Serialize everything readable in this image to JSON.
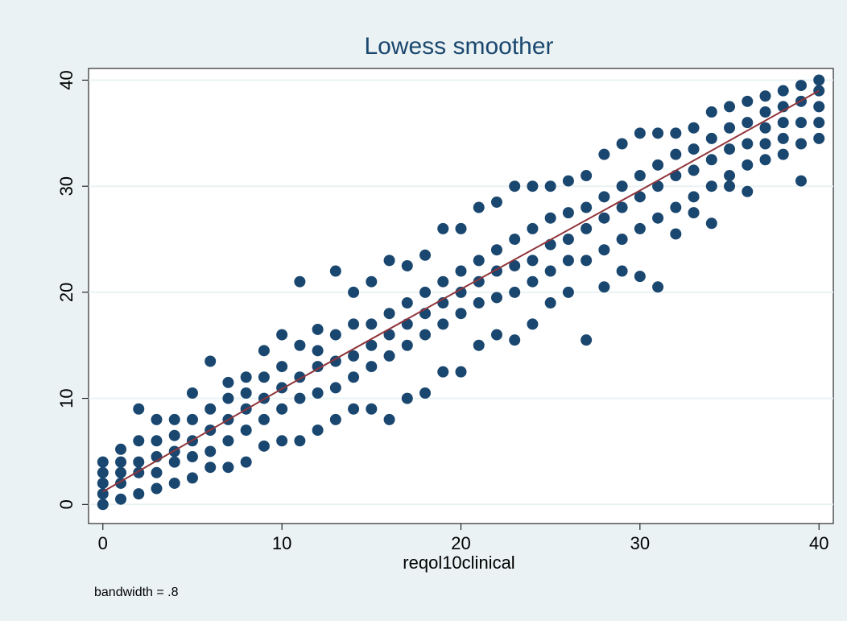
{
  "chart_data": {
    "type": "scatter",
    "title": "Lowess smoother",
    "x_label": "reqol10clinical",
    "note": "bandwidth = .8",
    "xlim": [
      -0.8,
      40.8
    ],
    "ylim": [
      -1.8,
      41.1
    ],
    "xticks": [
      0,
      10,
      20,
      30,
      40
    ],
    "yticks": [
      0,
      10,
      20,
      30,
      40
    ],
    "grid": true,
    "series": [
      {
        "type": "scatter",
        "color": "#1a476f",
        "x": [
          0,
          0,
          0,
          0,
          0,
          1,
          1,
          1,
          1,
          1,
          2,
          2,
          2,
          2,
          2,
          3,
          3,
          3,
          3,
          3,
          4,
          4,
          4,
          4,
          4,
          5,
          5,
          5,
          5,
          5,
          6,
          6,
          6,
          6,
          6,
          7,
          7,
          7,
          7,
          7,
          8,
          8,
          8,
          8,
          8,
          9,
          9,
          9,
          9,
          9,
          10,
          10,
          10,
          10,
          10,
          11,
          11,
          11,
          11,
          11,
          12,
          12,
          12,
          12,
          12,
          13,
          13,
          13,
          13,
          13,
          14,
          14,
          14,
          14,
          14,
          15,
          15,
          15,
          15,
          15,
          16,
          16,
          16,
          16,
          16,
          17,
          17,
          17,
          17,
          17,
          18,
          18,
          18,
          18,
          18,
          19,
          19,
          19,
          19,
          19,
          20,
          20,
          20,
          20,
          20,
          21,
          21,
          21,
          21,
          21,
          22,
          22,
          22,
          22,
          22,
          23,
          23,
          23,
          23,
          23,
          24,
          24,
          24,
          24,
          24,
          25,
          25,
          25,
          25,
          25,
          26,
          26,
          26,
          26,
          26,
          27,
          27,
          27,
          27,
          27,
          28,
          28,
          28,
          28,
          28,
          29,
          29,
          29,
          29,
          29,
          30,
          30,
          30,
          30,
          30,
          31,
          31,
          31,
          31,
          31,
          32,
          32,
          32,
          32,
          32,
          33,
          33,
          33,
          33,
          33,
          34,
          34,
          34,
          34,
          34,
          35,
          35,
          35,
          35,
          35,
          36,
          36,
          36,
          36,
          36,
          37,
          37,
          37,
          37,
          37,
          38,
          38,
          38,
          38,
          38,
          39,
          39,
          39,
          39,
          39,
          40,
          40,
          40,
          40,
          40
        ],
        "values": [
          0,
          1,
          2,
          3,
          4,
          0.5,
          2,
          3,
          4,
          5.2,
          1,
          3,
          4,
          6,
          9,
          1.5,
          3,
          4.5,
          6,
          8,
          2,
          4,
          5,
          6.5,
          8,
          2.5,
          4.5,
          6,
          8,
          10.5,
          3.5,
          5,
          7,
          9,
          13.5,
          3.5,
          6,
          8,
          10,
          11.5,
          4,
          7,
          9,
          10.5,
          12,
          5.5,
          8,
          10,
          12,
          14.5,
          6,
          9,
          11,
          13,
          16,
          6,
          10,
          12,
          15,
          21,
          7,
          10.5,
          13,
          14.5,
          16.5,
          8,
          11,
          13.5,
          16,
          22,
          9,
          12,
          14,
          17,
          20,
          9,
          13,
          15,
          17,
          21,
          8,
          14,
          16,
          18,
          23,
          10,
          15,
          17,
          19,
          22.5,
          10.5,
          16,
          18,
          20,
          23.5,
          12.5,
          17,
          19,
          21,
          26,
          12.5,
          18,
          20,
          22,
          26,
          15,
          19,
          21,
          23,
          28,
          16,
          19.5,
          22,
          24,
          28.5,
          15.5,
          20,
          22.5,
          25,
          30,
          17,
          21,
          23,
          26,
          30,
          19,
          22,
          24.5,
          27,
          30,
          20,
          23,
          25,
          27.5,
          30.5,
          15.5,
          23,
          26,
          28,
          31,
          20.5,
          24,
          27,
          29,
          33,
          22,
          25,
          28,
          30,
          34,
          21.5,
          26,
          29,
          31,
          35,
          20.5,
          27,
          30,
          32,
          35,
          25.5,
          28,
          31,
          33,
          35,
          27.5,
          29,
          31.5,
          33.5,
          35.5,
          26.5,
          30,
          32.5,
          34.5,
          37,
          30,
          31,
          33.5,
          35.5,
          37.5,
          29.5,
          32,
          34,
          36,
          38,
          32.5,
          34,
          35.5,
          37,
          38.5,
          33,
          34.5,
          36,
          37.5,
          39,
          30.5,
          34,
          36,
          38,
          39.5,
          34.5,
          36,
          37.5,
          39,
          40
        ]
      },
      {
        "type": "line",
        "color": "#90353b",
        "x": [
          0,
          10,
          20,
          30,
          40
        ],
        "values": [
          1.2,
          10.9,
          20.3,
          29.6,
          39
        ]
      }
    ]
  }
}
